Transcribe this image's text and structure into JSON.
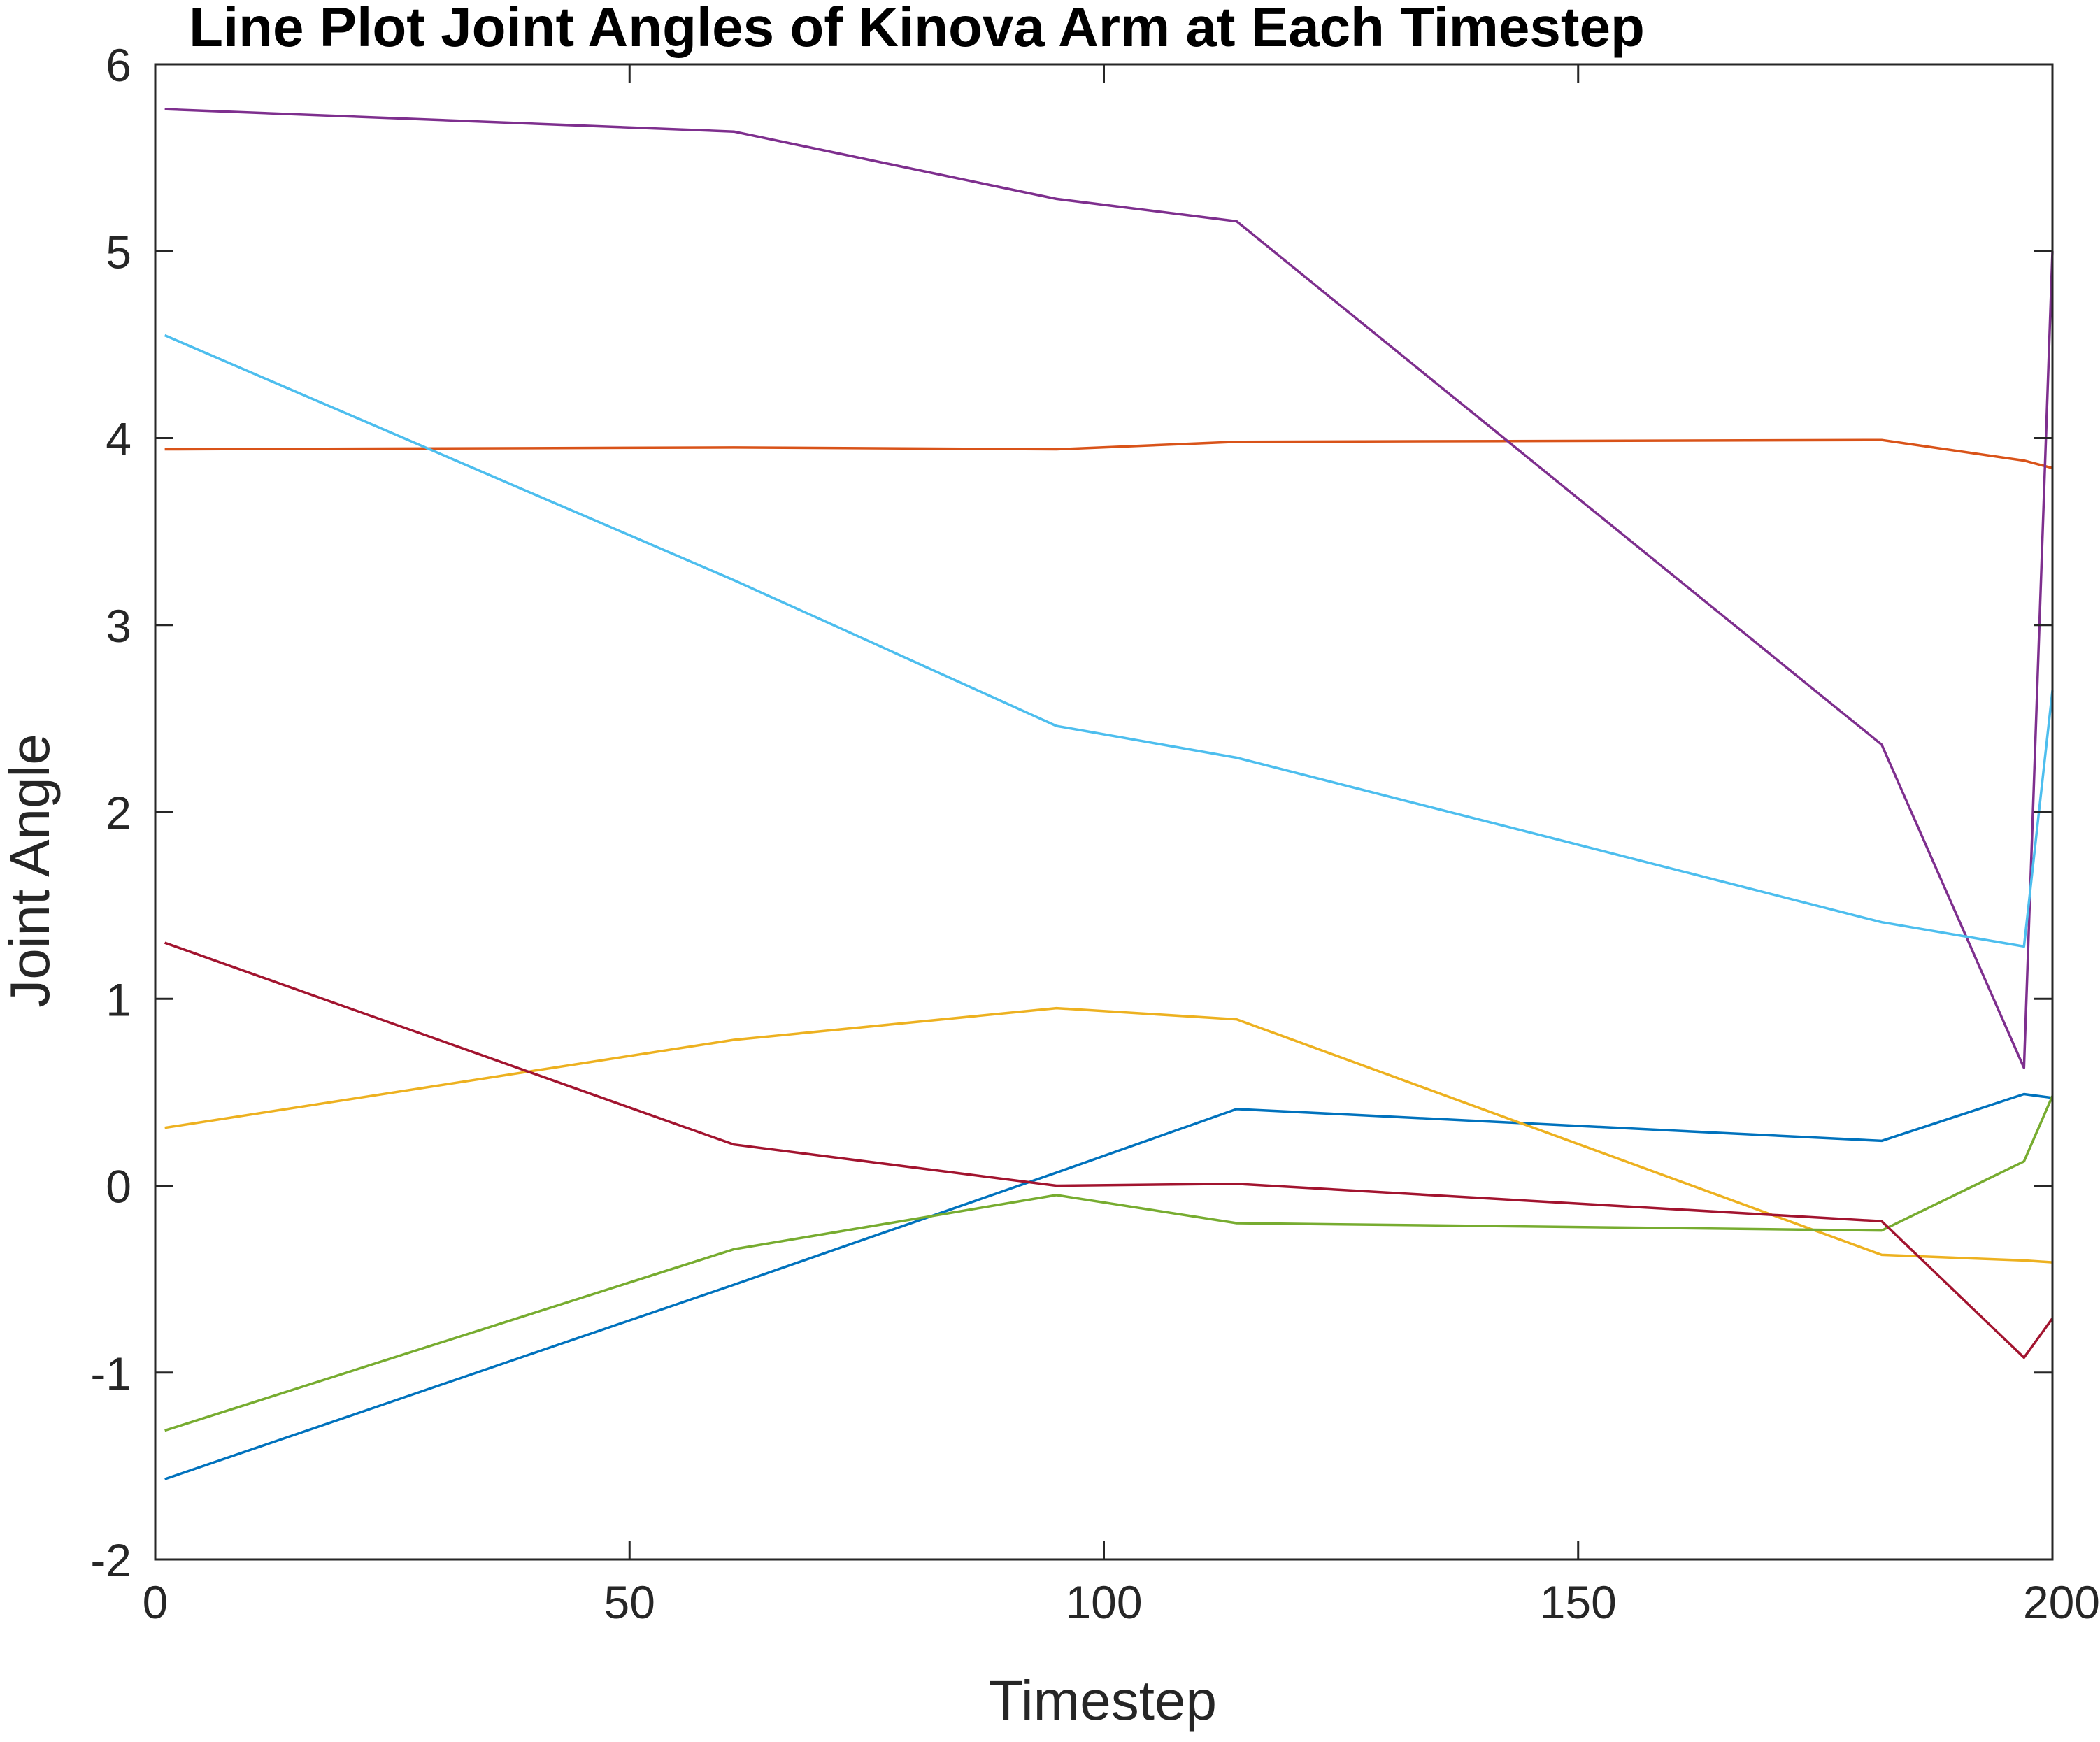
{
  "chart_data": {
    "type": "line",
    "title": "Line Plot Joint Angles of Kinova Arm at Each Timestep",
    "xlabel": "Timestep",
    "ylabel": "Joint Angle",
    "xlim": [
      0,
      200
    ],
    "ylim": [
      -2,
      6
    ],
    "xticks": [
      0,
      50,
      100,
      150,
      200
    ],
    "yticks": [
      -2,
      -1,
      0,
      1,
      2,
      3,
      4,
      5,
      6
    ],
    "xtick_labels": [
      "0",
      "50",
      "100",
      "150",
      "200"
    ],
    "ytick_labels": [
      "-2",
      "-1",
      "0",
      "1",
      "2",
      "3",
      "4",
      "5",
      "6"
    ],
    "grid": false,
    "box": true,
    "series": [
      {
        "color": "#0072BD",
        "x": [
          1,
          61,
          95,
          114,
          182,
          197,
          200
        ],
        "y": [
          -1.57,
          -0.53,
          0.07,
          0.41,
          0.24,
          0.49,
          0.47
        ]
      },
      {
        "color": "#D95319",
        "x": [
          1,
          61,
          95,
          114,
          182,
          197,
          200
        ],
        "y": [
          3.94,
          3.95,
          3.94,
          3.98,
          3.99,
          3.88,
          3.84
        ]
      },
      {
        "color": "#EDB120",
        "x": [
          1,
          61,
          95,
          114,
          182,
          197,
          200
        ],
        "y": [
          0.31,
          0.78,
          0.95,
          0.89,
          -0.37,
          -0.4,
          -0.41
        ]
      },
      {
        "color": "#7E2F8E",
        "x": [
          1,
          61,
          95,
          114,
          182,
          197,
          200
        ],
        "y": [
          5.76,
          5.64,
          5.28,
          5.16,
          2.36,
          0.63,
          5.0
        ]
      },
      {
        "color": "#77AC30",
        "x": [
          1,
          61,
          95,
          114,
          182,
          197,
          200
        ],
        "y": [
          -1.31,
          -0.34,
          -0.05,
          -0.2,
          -0.24,
          0.13,
          0.48
        ]
      },
      {
        "color": "#4DBEEE",
        "x": [
          1,
          61,
          95,
          114,
          182,
          197,
          200
        ],
        "y": [
          4.55,
          3.24,
          2.46,
          2.29,
          1.41,
          1.28,
          2.65
        ]
      },
      {
        "color": "#A2142F",
        "x": [
          1,
          61,
          95,
          114,
          182,
          197,
          200
        ],
        "y": [
          1.3,
          0.22,
          0.0,
          0.01,
          -0.19,
          -0.92,
          -0.71
        ]
      }
    ]
  }
}
